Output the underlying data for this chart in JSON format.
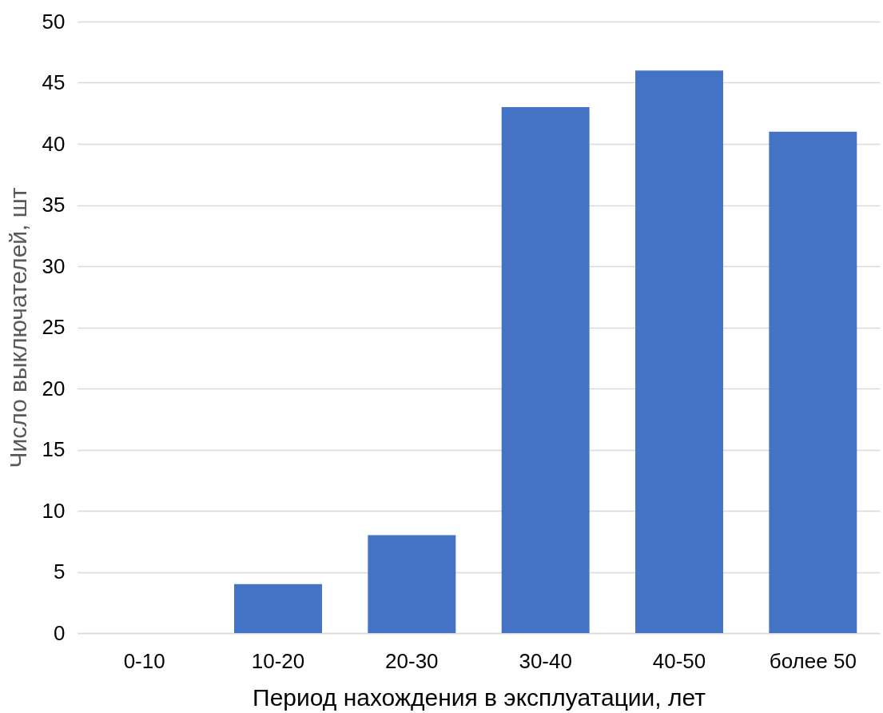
{
  "chart_data": {
    "type": "bar",
    "xlabel": "Период нахождения в эксплуатации, лет",
    "ylabel": "Число выключателей, шт",
    "categories": [
      "0-10",
      "10-20",
      "20-30",
      "30-40",
      "40-50",
      "более 50"
    ],
    "values": [
      0,
      4,
      8,
      43,
      46,
      41
    ],
    "color": "#4472c4",
    "ylim": [
      0,
      50
    ],
    "yticks": [
      0,
      5,
      10,
      15,
      20,
      25,
      30,
      35,
      40,
      45,
      50
    ],
    "grid": "y"
  }
}
